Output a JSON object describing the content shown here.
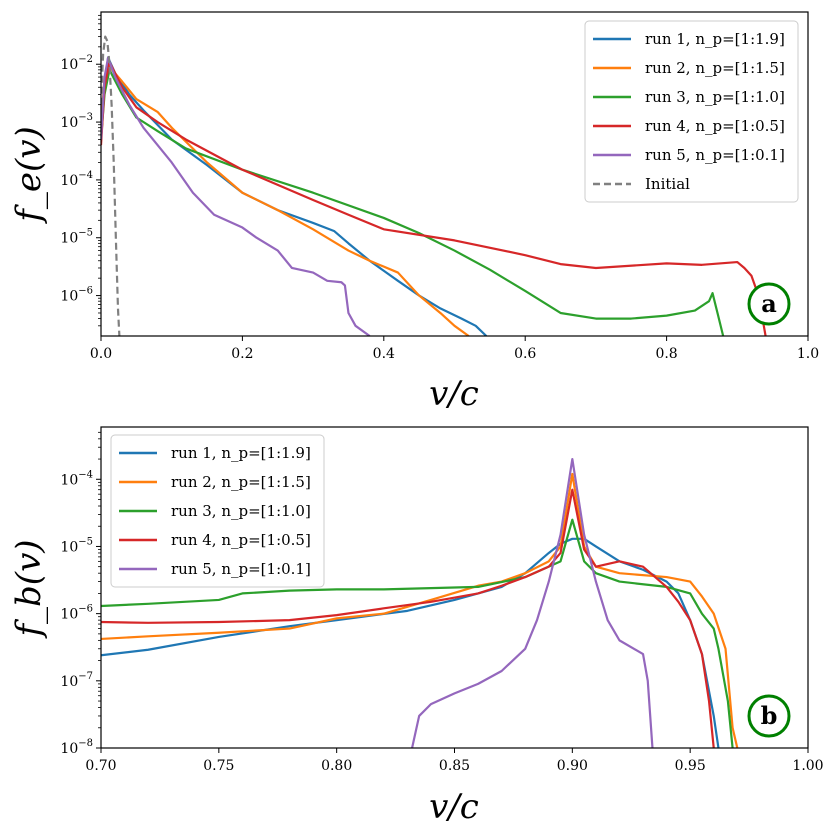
{
  "chart_data": [
    {
      "type": "line",
      "panel_label": "a",
      "xlabel": "v/c",
      "ylabel": "f_e(v)",
      "xscale": "linear",
      "yscale": "log",
      "xlim": [
        0.0,
        1.0
      ],
      "ylim": [
        2e-07,
        0.08
      ],
      "xticks": [
        0.0,
        0.2,
        0.4,
        0.6,
        0.8,
        1.0
      ],
      "xtick_labels": [
        "0.0",
        "0.2",
        "0.4",
        "0.6",
        "0.8",
        "1.0"
      ],
      "yticks": [
        1e-06,
        1e-05,
        0.0001,
        0.001,
        0.01
      ],
      "ytick_labels": [
        "10−6",
        "10−5",
        "10−4",
        "10−3",
        "10−2"
      ],
      "legend_position": "top-right",
      "series": [
        {
          "name": "run 1, n_p=[1:1.9]",
          "color": "#1f77b4",
          "dash": "solid",
          "points": [
            [
              0.0,
              0.0005
            ],
            [
              0.005,
              0.004
            ],
            [
              0.01,
              0.013
            ],
            [
              0.02,
              0.007
            ],
            [
              0.04,
              0.003
            ],
            [
              0.06,
              0.0016
            ],
            [
              0.1,
              0.0005
            ],
            [
              0.15,
              0.00018
            ],
            [
              0.2,
              6e-05
            ],
            [
              0.25,
              3e-05
            ],
            [
              0.3,
              1.8e-05
            ],
            [
              0.33,
              1.3e-05
            ],
            [
              0.35,
              8e-06
            ],
            [
              0.38,
              4e-06
            ],
            [
              0.42,
              1.8e-06
            ],
            [
              0.45,
              1e-06
            ],
            [
              0.48,
              6e-07
            ],
            [
              0.51,
              4e-07
            ],
            [
              0.53,
              3e-07
            ],
            [
              0.545,
              2e-07
            ]
          ]
        },
        {
          "name": "run 2, n_p=[1:1.5]",
          "color": "#ff7f0e",
          "dash": "solid",
          "points": [
            [
              0.0,
              0.0008
            ],
            [
              0.005,
              0.006
            ],
            [
              0.012,
              0.009
            ],
            [
              0.03,
              0.005
            ],
            [
              0.05,
              0.0025
            ],
            [
              0.08,
              0.0015
            ],
            [
              0.1,
              0.0008
            ],
            [
              0.15,
              0.0002
            ],
            [
              0.2,
              6e-05
            ],
            [
              0.25,
              3e-05
            ],
            [
              0.3,
              1.4e-05
            ],
            [
              0.35,
              6e-06
            ],
            [
              0.38,
              4e-06
            ],
            [
              0.42,
              2.5e-06
            ],
            [
              0.45,
              1e-06
            ],
            [
              0.48,
              5e-07
            ],
            [
              0.5,
              3e-07
            ],
            [
              0.52,
              2e-07
            ]
          ]
        },
        {
          "name": "run 3, n_p=[1:1.0]",
          "color": "#2ca02c",
          "dash": "solid",
          "points": [
            [
              0.0,
              0.0005
            ],
            [
              0.005,
              0.003
            ],
            [
              0.012,
              0.008
            ],
            [
              0.03,
              0.003
            ],
            [
              0.05,
              0.0012
            ],
            [
              0.08,
              0.0007
            ],
            [
              0.12,
              0.00035
            ],
            [
              0.2,
              0.00015
            ],
            [
              0.3,
              6e-05
            ],
            [
              0.4,
              2.2e-05
            ],
            [
              0.45,
              1.2e-05
            ],
            [
              0.5,
              6e-06
            ],
            [
              0.55,
              2.8e-06
            ],
            [
              0.6,
              1.2e-06
            ],
            [
              0.65,
              5e-07
            ],
            [
              0.7,
              4e-07
            ],
            [
              0.75,
              4e-07
            ],
            [
              0.8,
              4.5e-07
            ],
            [
              0.84,
              5.5e-07
            ],
            [
              0.86,
              8e-07
            ],
            [
              0.865,
              1.1e-06
            ],
            [
              0.872,
              5e-07
            ],
            [
              0.88,
              2e-07
            ]
          ]
        },
        {
          "name": "run 4, n_p=[1:0.5]",
          "color": "#d62728",
          "dash": "solid",
          "points": [
            [
              0.0,
              0.0004
            ],
            [
              0.005,
              0.004
            ],
            [
              0.012,
              0.011
            ],
            [
              0.03,
              0.004
            ],
            [
              0.05,
              0.0018
            ],
            [
              0.08,
              0.001
            ],
            [
              0.12,
              0.0005
            ],
            [
              0.2,
              0.00015
            ],
            [
              0.3,
              4.5e-05
            ],
            [
              0.35,
              2.5e-05
            ],
            [
              0.4,
              1.4e-05
            ],
            [
              0.5,
              9e-06
            ],
            [
              0.6,
              5e-06
            ],
            [
              0.65,
              3.5e-06
            ],
            [
              0.7,
              3e-06
            ],
            [
              0.8,
              3.6e-06
            ],
            [
              0.85,
              3.4e-06
            ],
            [
              0.9,
              3.8e-06
            ],
            [
              0.91,
              3e-06
            ],
            [
              0.92,
              2.2e-06
            ],
            [
              0.93,
              1e-06
            ],
            [
              0.94,
              2e-07
            ]
          ]
        },
        {
          "name": "run 5, n_p=[1:0.1]",
          "color": "#9467bd",
          "dash": "solid",
          "points": [
            [
              0.0,
              0.0005
            ],
            [
              0.005,
              0.006
            ],
            [
              0.01,
              0.013
            ],
            [
              0.02,
              0.006
            ],
            [
              0.04,
              0.002
            ],
            [
              0.06,
              0.0008
            ],
            [
              0.1,
              0.0002
            ],
            [
              0.13,
              6e-05
            ],
            [
              0.16,
              2.5e-05
            ],
            [
              0.2,
              1.5e-05
            ],
            [
              0.22,
              1e-05
            ],
            [
              0.25,
              6e-06
            ],
            [
              0.27,
              3e-06
            ],
            [
              0.3,
              2.5e-06
            ],
            [
              0.32,
              1.8e-06
            ],
            [
              0.34,
              1.7e-06
            ],
            [
              0.345,
              1.5e-06
            ],
            [
              0.35,
              5e-07
            ],
            [
              0.36,
              3e-07
            ],
            [
              0.38,
              2e-07
            ]
          ]
        },
        {
          "name": "Initial",
          "color": "#808080",
          "dash": "dashed",
          "points": [
            [
              0.0,
              0.002
            ],
            [
              0.003,
              0.015
            ],
            [
              0.006,
              0.03
            ],
            [
              0.009,
              0.025
            ],
            [
              0.012,
              0.01
            ],
            [
              0.015,
              0.002
            ],
            [
              0.018,
              0.0002
            ],
            [
              0.021,
              1e-05
            ],
            [
              0.024,
              6e-07
            ],
            [
              0.026,
              2e-07
            ]
          ]
        }
      ]
    },
    {
      "type": "line",
      "panel_label": "b",
      "xlabel": "v/c",
      "ylabel": "f_b(v)",
      "xscale": "linear",
      "yscale": "log",
      "xlim": [
        0.7,
        1.0
      ],
      "ylim": [
        1e-08,
        0.0006
      ],
      "xticks": [
        0.7,
        0.75,
        0.8,
        0.85,
        0.9,
        0.95,
        1.0
      ],
      "xtick_labels": [
        "0.70",
        "0.75",
        "0.80",
        "0.85",
        "0.90",
        "0.95",
        "1.00"
      ],
      "yticks": [
        1e-08,
        1e-07,
        1e-06,
        1e-05,
        0.0001
      ],
      "ytick_labels": [
        "10−8",
        "10−7",
        "10−6",
        "10−5",
        "10−4"
      ],
      "legend_position": "top-left",
      "series": [
        {
          "name": "run 1, n_p=[1:1.9]",
          "color": "#1f77b4",
          "dash": "solid",
          "points": [
            [
              0.7,
              2.4e-07
            ],
            [
              0.72,
              2.9e-07
            ],
            [
              0.75,
              4.5e-07
            ],
            [
              0.78,
              6.5e-07
            ],
            [
              0.8,
              8e-07
            ],
            [
              0.83,
              1.1e-06
            ],
            [
              0.85,
              1.6e-06
            ],
            [
              0.87,
              2.5e-06
            ],
            [
              0.88,
              4e-06
            ],
            [
              0.89,
              8e-06
            ],
            [
              0.895,
              1.1e-05
            ],
            [
              0.9,
              1.3e-05
            ],
            [
              0.905,
              1.3e-05
            ],
            [
              0.91,
              1e-05
            ],
            [
              0.92,
              6e-06
            ],
            [
              0.93,
              4.5e-06
            ],
            [
              0.94,
              3e-06
            ],
            [
              0.945,
              2e-06
            ],
            [
              0.95,
              8e-07
            ],
            [
              0.955,
              2.5e-07
            ],
            [
              0.96,
              3e-08
            ],
            [
              0.962,
              1e-08
            ]
          ]
        },
        {
          "name": "run 2, n_p=[1:1.5]",
          "color": "#ff7f0e",
          "dash": "solid",
          "points": [
            [
              0.7,
              4.2e-07
            ],
            [
              0.72,
              4.6e-07
            ],
            [
              0.75,
              5.2e-07
            ],
            [
              0.78,
              6e-07
            ],
            [
              0.8,
              8.5e-07
            ],
            [
              0.82,
              1e-06
            ],
            [
              0.84,
              1.6e-06
            ],
            [
              0.86,
              2.6e-06
            ],
            [
              0.87,
              3e-06
            ],
            [
              0.88,
              4e-06
            ],
            [
              0.89,
              6e-06
            ],
            [
              0.895,
              1e-05
            ],
            [
              0.9,
              0.00012
            ],
            [
              0.905,
              1e-05
            ],
            [
              0.91,
              5e-06
            ],
            [
              0.92,
              4e-06
            ],
            [
              0.94,
              3.5e-06
            ],
            [
              0.95,
              3e-06
            ],
            [
              0.955,
              1.8e-06
            ],
            [
              0.96,
              1e-06
            ],
            [
              0.965,
              3e-07
            ],
            [
              0.968,
              2e-08
            ],
            [
              0.97,
              1e-08
            ]
          ]
        },
        {
          "name": "run 3, n_p=[1:1.0]",
          "color": "#2ca02c",
          "dash": "solid",
          "points": [
            [
              0.7,
              1.3e-06
            ],
            [
              0.72,
              1.4e-06
            ],
            [
              0.75,
              1.6e-06
            ],
            [
              0.76,
              2e-06
            ],
            [
              0.78,
              2.2e-06
            ],
            [
              0.8,
              2.3e-06
            ],
            [
              0.82,
              2.3e-06
            ],
            [
              0.84,
              2.4e-06
            ],
            [
              0.86,
              2.5e-06
            ],
            [
              0.88,
              3.5e-06
            ],
            [
              0.89,
              5e-06
            ],
            [
              0.895,
              6e-06
            ],
            [
              0.9,
              2.5e-05
            ],
            [
              0.905,
              6e-06
            ],
            [
              0.91,
              4e-06
            ],
            [
              0.92,
              3e-06
            ],
            [
              0.94,
              2.5e-06
            ],
            [
              0.95,
              2e-06
            ],
            [
              0.955,
              1e-06
            ],
            [
              0.96,
              6e-07
            ],
            [
              0.962,
              3e-07
            ],
            [
              0.966,
              5e-08
            ],
            [
              0.968,
              1e-08
            ]
          ]
        },
        {
          "name": "run 4, n_p=[1:0.5]",
          "color": "#d62728",
          "dash": "solid",
          "points": [
            [
              0.7,
              7.5e-07
            ],
            [
              0.72,
              7.3e-07
            ],
            [
              0.75,
              7.5e-07
            ],
            [
              0.78,
              8e-07
            ],
            [
              0.8,
              9.5e-07
            ],
            [
              0.82,
              1.2e-06
            ],
            [
              0.84,
              1.5e-06
            ],
            [
              0.86,
              2e-06
            ],
            [
              0.87,
              2.6e-06
            ],
            [
              0.88,
              3.5e-06
            ],
            [
              0.89,
              5e-06
            ],
            [
              0.895,
              8e-06
            ],
            [
              0.9,
              7e-05
            ],
            [
              0.905,
              9e-06
            ],
            [
              0.91,
              5e-06
            ],
            [
              0.92,
              6e-06
            ],
            [
              0.93,
              5e-06
            ],
            [
              0.94,
              2.5e-06
            ],
            [
              0.945,
              1.5e-06
            ],
            [
              0.95,
              8e-07
            ],
            [
              0.955,
              2.5e-07
            ],
            [
              0.958,
              5e-08
            ],
            [
              0.96,
              1e-08
            ]
          ]
        },
        {
          "name": "run 5, n_p=[1:0.1]",
          "color": "#9467bd",
          "dash": "solid",
          "points": [
            [
              0.832,
              1e-08
            ],
            [
              0.835,
              3e-08
            ],
            [
              0.84,
              4.5e-08
            ],
            [
              0.85,
              6.5e-08
            ],
            [
              0.86,
              9e-08
            ],
            [
              0.87,
              1.4e-07
            ],
            [
              0.88,
              3e-07
            ],
            [
              0.885,
              8e-07
            ],
            [
              0.89,
              3e-06
            ],
            [
              0.895,
              1.5e-05
            ],
            [
              0.9,
              0.0002
            ],
            [
              0.905,
              1.5e-05
            ],
            [
              0.91,
              3e-06
            ],
            [
              0.915,
              8e-07
            ],
            [
              0.92,
              4e-07
            ],
            [
              0.93,
              2.5e-07
            ],
            [
              0.932,
              1e-07
            ],
            [
              0.934,
              1e-08
            ]
          ]
        }
      ]
    }
  ]
}
